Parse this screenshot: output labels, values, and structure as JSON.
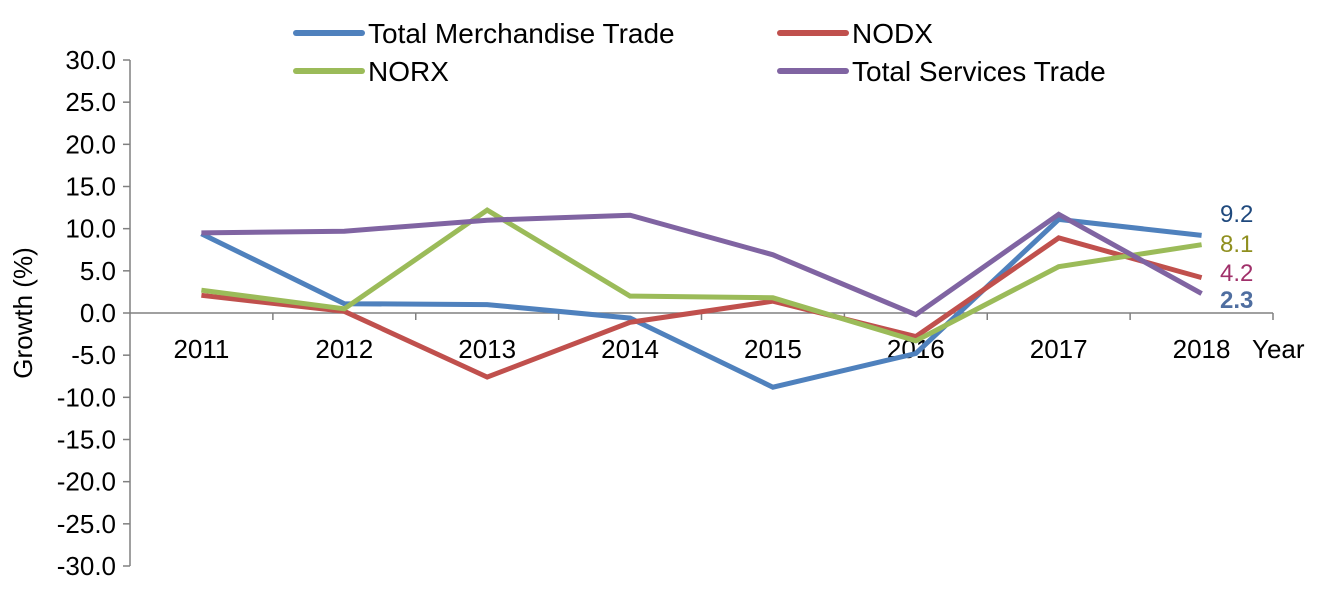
{
  "chart_data": {
    "type": "line",
    "categories": [
      "2011",
      "2012",
      "2013",
      "2014",
      "2015",
      "2016",
      "2017",
      "2018"
    ],
    "xlabel": "Year",
    "ylabel": "Growth (%)",
    "ylim": [
      -30,
      30
    ],
    "ytick_labels": [
      "30.0",
      "25.0",
      "20.0",
      "15.0",
      "10.0",
      "5.0",
      "0.0",
      "-5.0",
      "-10.0",
      "-15.0",
      "-20.0",
      "-25.0",
      "-30.0"
    ],
    "legend_position": "top",
    "grid": false,
    "series": [
      {
        "name": "Total Merchandise Trade",
        "color": "#4f81bd",
        "values": [
          9.4,
          1.1,
          1.0,
          -0.6,
          -8.8,
          -4.8,
          11.1,
          9.2
        ],
        "end_label": "9.2",
        "end_label_color": "#1f497d"
      },
      {
        "name": "NODX",
        "color": "#c0504d",
        "values": [
          2.1,
          0.2,
          -7.6,
          -1.1,
          1.4,
          -2.8,
          8.9,
          4.2
        ],
        "end_label": "4.2",
        "end_label_color": "#a0306a"
      },
      {
        "name": "NORX",
        "color": "#9bbb59",
        "values": [
          2.7,
          0.5,
          12.2,
          2.0,
          1.8,
          -3.3,
          5.5,
          8.1
        ],
        "end_label": "8.1",
        "end_label_color": "#8f8f1f"
      },
      {
        "name": "Total Services Trade",
        "color": "#8064a2",
        "values": [
          9.5,
          9.7,
          11.0,
          11.6,
          6.9,
          -0.2,
          11.7,
          2.3
        ],
        "end_label": "2.3",
        "end_label_color": "#4f6ea0"
      }
    ]
  }
}
